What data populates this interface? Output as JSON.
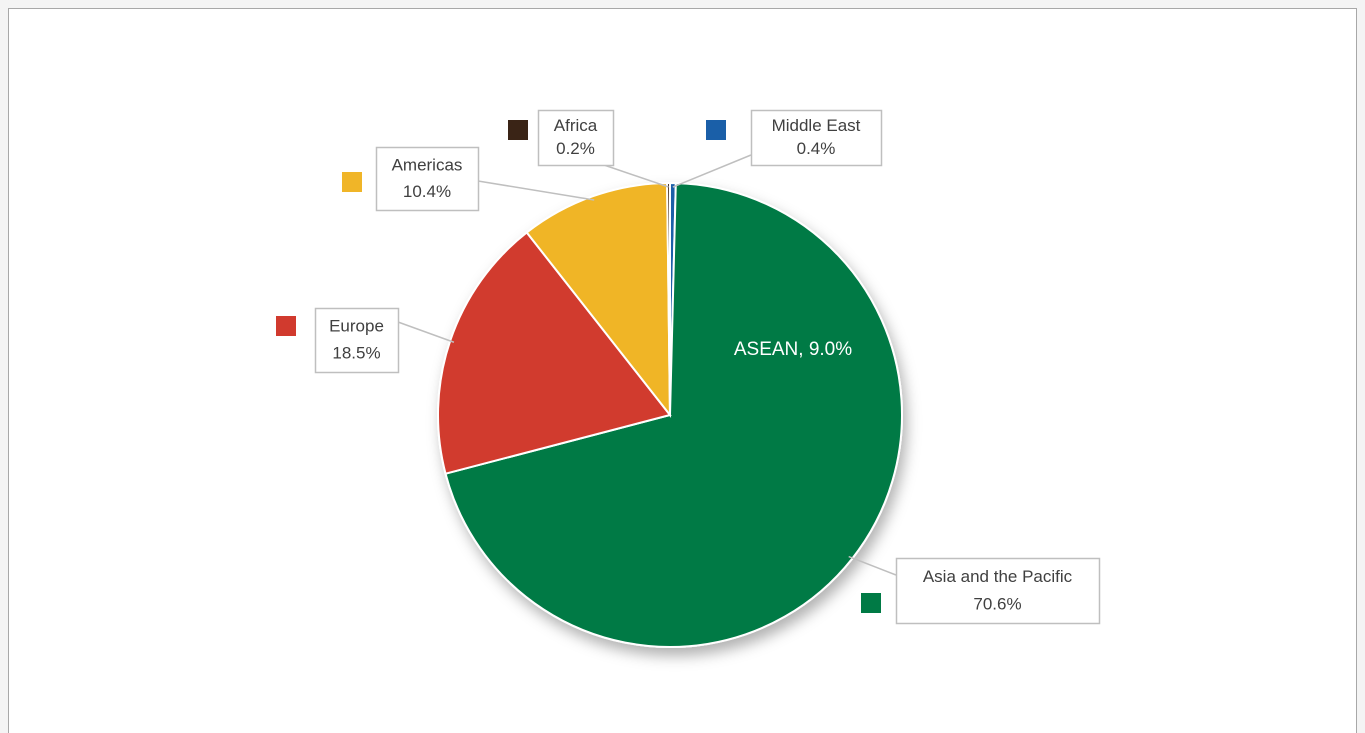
{
  "chart_data": {
    "type": "pie",
    "categories": [
      "Middle East",
      "Asia and the Pacific",
      "Europe",
      "Americas",
      "Africa"
    ],
    "values": [
      0.4,
      70.6,
      18.5,
      10.4,
      0.2
    ],
    "value_labels": [
      "0.4%",
      "70.6%",
      "18.5%",
      "10.4%",
      "0.2%"
    ],
    "colors": [
      "#1a5fa8",
      "#007a45",
      "#d13a2e",
      "#f0b528",
      "#3a2416"
    ],
    "annotation": "ASEAN, 9.0%"
  }
}
